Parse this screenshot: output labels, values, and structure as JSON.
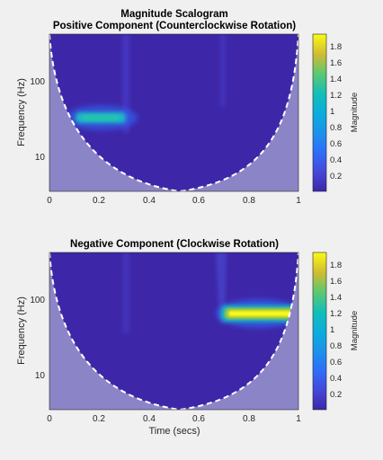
{
  "chart_data": [
    {
      "type": "heatmap",
      "title": "Magnitude Scalogram",
      "subtitle": "Positive Component (Counterclockwise Rotation)",
      "xlabel": "",
      "ylabel": "Frequency (Hz)",
      "xlim": [
        0,
        1
      ],
      "ylim": [
        3.5,
        450
      ],
      "yscale": "log",
      "xticks": [
        0,
        0.2,
        0.4,
        0.6,
        0.8,
        1
      ],
      "xtick_labels": [
        "0",
        "0.2",
        "0.4",
        "0.6",
        "0.8",
        "1"
      ],
      "yticks": [
        10,
        100
      ],
      "ytick_labels": [
        "10",
        "100"
      ],
      "colorbar": {
        "label": "Magnitude",
        "range": [
          0,
          1.95
        ],
        "ticks": [
          0.2,
          0.4,
          0.6,
          0.8,
          1,
          1.2,
          1.4,
          1.6,
          1.8
        ],
        "tick_labels": [
          "0.2",
          "0.4",
          "0.6",
          "0.8",
          "1",
          "1.2",
          "1.4",
          "1.6",
          "1.8"
        ]
      },
      "features": [
        {
          "t_start": 0.1,
          "t_end": 0.3,
          "frequency_hz": 32,
          "magnitude": 1.0
        },
        {
          "t": 0.3,
          "kind": "transient",
          "magnitude": 0.35
        },
        {
          "t": 0.7,
          "kind": "transient",
          "magnitude": 0.3
        }
      ],
      "cone_of_influence": true
    },
    {
      "type": "heatmap",
      "title": "Negative Component (Clockwise Rotation)",
      "xlabel": "Time (secs)",
      "ylabel": "Frequency (Hz)",
      "xlim": [
        0,
        1
      ],
      "ylim": [
        3.5,
        450
      ],
      "yscale": "log",
      "xticks": [
        0,
        0.2,
        0.4,
        0.6,
        0.8,
        1
      ],
      "xtick_labels": [
        "0",
        "0.2",
        "0.4",
        "0.6",
        "0.8",
        "1"
      ],
      "yticks": [
        10,
        100
      ],
      "ytick_labels": [
        "10",
        "100"
      ],
      "colorbar": {
        "label": "Magnitude",
        "range": [
          0,
          1.95
        ],
        "ticks": [
          0.2,
          0.4,
          0.6,
          0.8,
          1,
          1.2,
          1.4,
          1.6,
          1.8
        ],
        "tick_labels": [
          "0.2",
          "0.4",
          "0.6",
          "0.8",
          "1",
          "1.2",
          "1.4",
          "1.6",
          "1.8"
        ]
      },
      "features": [
        {
          "t_start": 0.7,
          "t_end": 1.0,
          "frequency_hz": 65,
          "magnitude": 1.95
        },
        {
          "t": 0.3,
          "kind": "transient",
          "magnitude": 0.3
        },
        {
          "t": 0.7,
          "kind": "transient",
          "magnitude": 0.45
        }
      ],
      "cone_of_influence": true
    }
  ],
  "colors": {
    "figure_bg": "#f0f0f0",
    "parula_low": "#3e26a8",
    "parula_mid": "#13beb8",
    "parula_high": "#f9fb15",
    "coi_shade": "#8b85c7",
    "coi_line": "#ffffff"
  }
}
